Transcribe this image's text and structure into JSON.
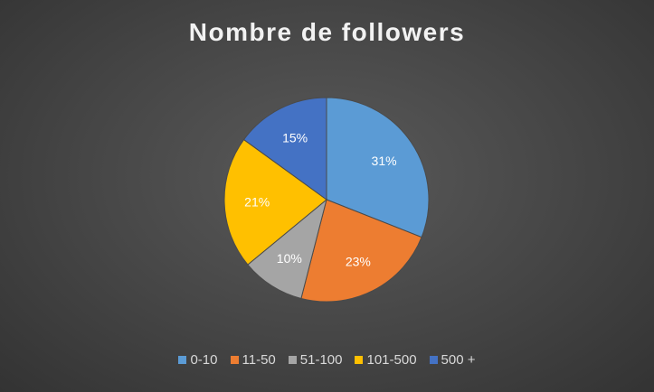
{
  "chart_data": {
    "type": "pie",
    "title": "Nombre de followers",
    "categories": [
      "0-10",
      "11-50",
      "51-100",
      "101-500",
      "500 +"
    ],
    "values": [
      31,
      23,
      10,
      21,
      15
    ],
    "data_labels": [
      "31%",
      "23%",
      "10%",
      "21%",
      "15%"
    ],
    "colors": [
      "#5b9bd5",
      "#ed7d31",
      "#a5a5a5",
      "#ffc000",
      "#4472c4"
    ],
    "legend_position": "bottom"
  }
}
